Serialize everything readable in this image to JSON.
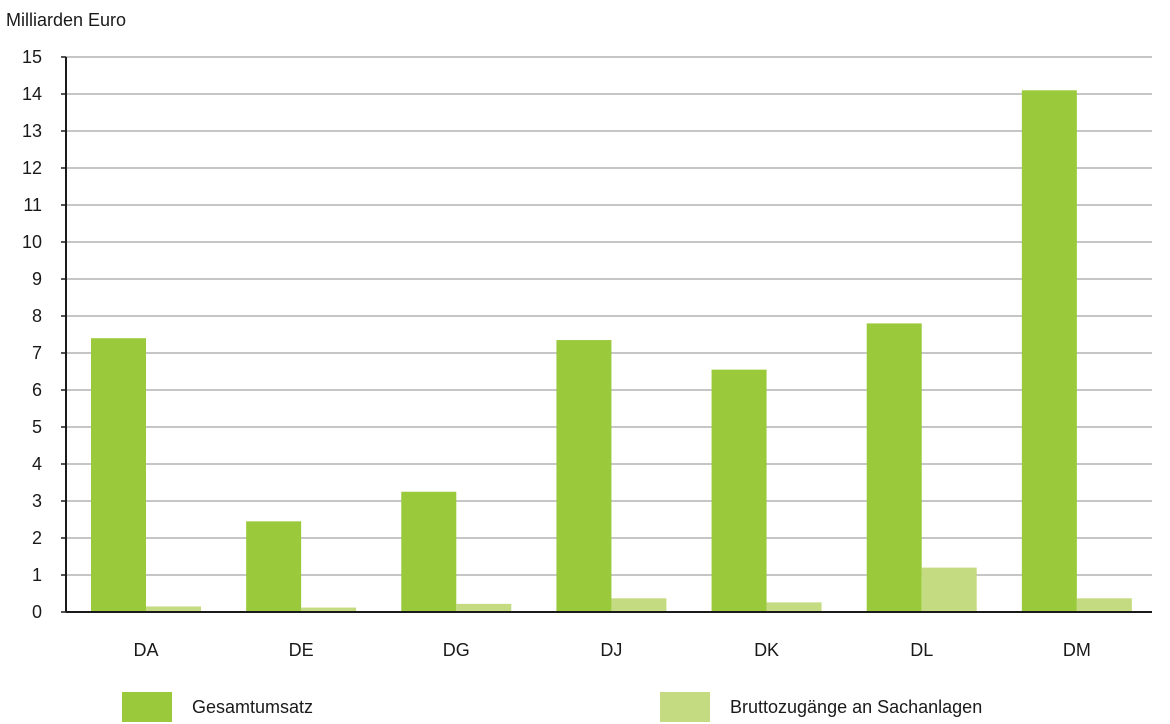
{
  "chart_data": {
    "type": "bar",
    "ylabel": "Milliarden Euro",
    "categories": [
      "DA",
      "DE",
      "DG",
      "DJ",
      "DK",
      "DL",
      "DM"
    ],
    "series": [
      {
        "name": "Gesamtumsatz",
        "color": "#9ACA3C",
        "values": [
          7.4,
          2.45,
          3.25,
          7.35,
          6.55,
          7.8,
          14.1
        ]
      },
      {
        "name": "Bruttozugänge an Sachanlagen",
        "color": "#C5DB82",
        "values": [
          0.15,
          0.12,
          0.22,
          0.37,
          0.26,
          1.2,
          0.37
        ]
      }
    ],
    "ylim": [
      0,
      15
    ],
    "yticks": [
      "0",
      "1",
      "2",
      "3",
      "4",
      "5",
      "6",
      "7",
      "8",
      "9",
      "10",
      "11",
      "12",
      "13",
      "14",
      "15"
    ],
    "grid": true,
    "legend_position": "bottom"
  }
}
